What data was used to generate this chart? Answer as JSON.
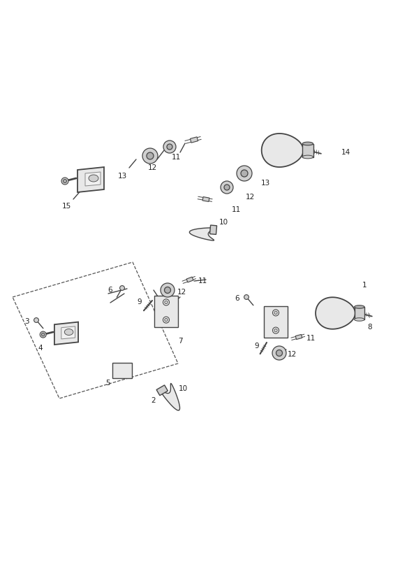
{
  "background_color": "#ffffff",
  "figsize": [
    5.83,
    8.24
  ],
  "dpi": 100,
  "line_color": "#444444",
  "fill_light": "#e8e8e8",
  "fill_mid": "#d0d0d0",
  "fill_dark": "#b0b0b0",
  "label_fs": 7.5
}
